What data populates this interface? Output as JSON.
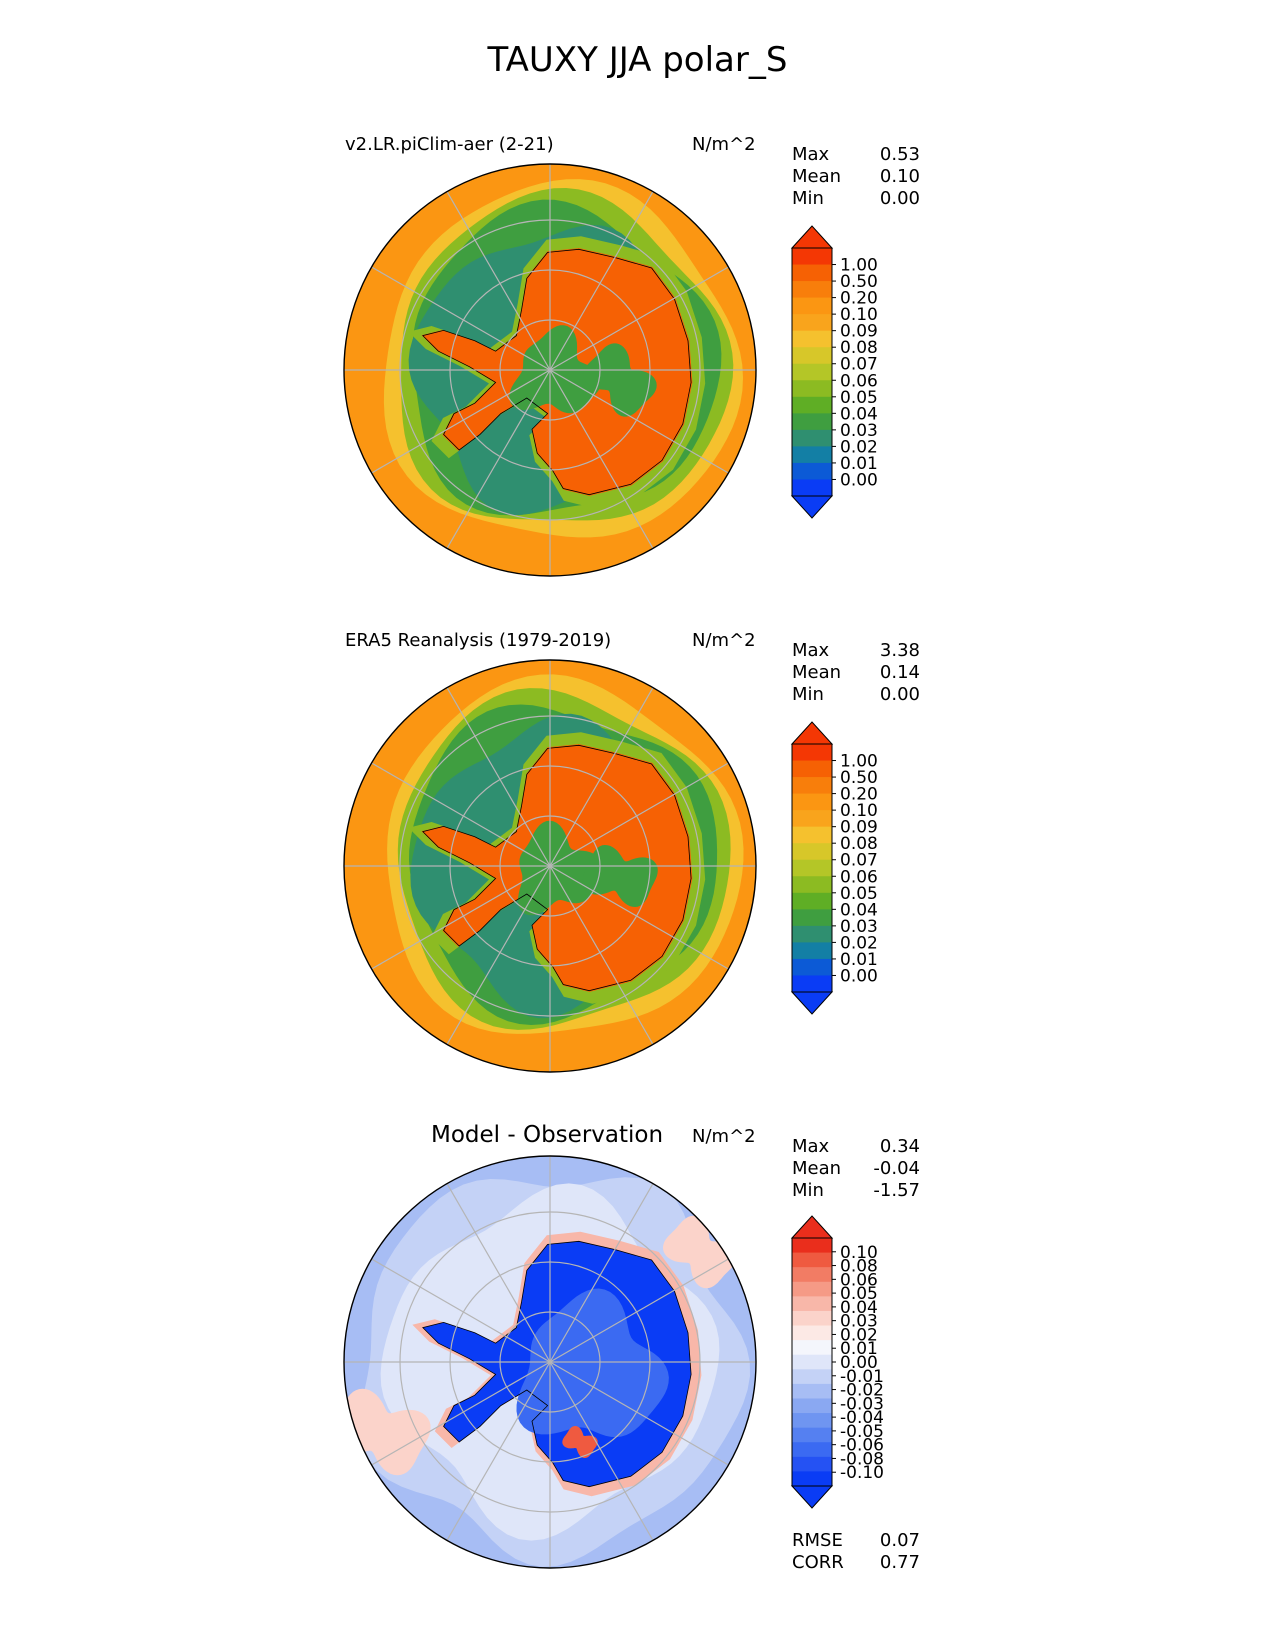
{
  "title": "TAUXY JJA polar_S",
  "colors": {
    "seq": [
      "#0a3cf5",
      "#0c5ad6",
      "#137fa5",
      "#2f8f70",
      "#3f9e40",
      "#5fae25",
      "#8cbb22",
      "#b4c627",
      "#d7c729",
      "#f5c12e",
      "#f9a41c",
      "#fb9612",
      "#f87e0b",
      "#f66104",
      "#f43704"
    ],
    "diff": [
      "#0a3cf5",
      "#2552f3",
      "#3b6af2",
      "#5580f1",
      "#6f95f1",
      "#8aa8f2",
      "#a7bdf4",
      "#c4d2f6",
      "#dfe6f9",
      "#f4f6fc",
      "#fce9e5",
      "#fbd3ca",
      "#f8b7a9",
      "#f59a86",
      "#f27c64",
      "#ef5a40",
      "#ea2e1c"
    ],
    "land": "#f66104",
    "ocean": "#fb9612",
    "ring": "#3f9e40"
  },
  "chart_data": [
    {
      "type": "heatmap",
      "projection": "south-polar-stereographic",
      "title": "v2.LR.piClim-aer (2-21)",
      "units": "N/m^2",
      "stats": [
        {
          "label": "Max",
          "value": "0.53"
        },
        {
          "label": "Mean",
          "value": "0.10"
        },
        {
          "label": "Min",
          "value": "0.00"
        }
      ],
      "colorbar": {
        "levels": [
          "1.00",
          "0.50",
          "0.20",
          "0.10",
          "0.09",
          "0.08",
          "0.07",
          "0.06",
          "0.05",
          "0.04",
          "0.03",
          "0.02",
          "0.01",
          "0.00"
        ],
        "extend": "both"
      }
    },
    {
      "type": "heatmap",
      "projection": "south-polar-stereographic",
      "title": "ERA5 Reanalysis (1979-2019)",
      "units": "N/m^2",
      "stats": [
        {
          "label": "Max",
          "value": "3.38"
        },
        {
          "label": "Mean",
          "value": "0.14"
        },
        {
          "label": "Min",
          "value": "0.00"
        }
      ],
      "colorbar": {
        "levels": [
          "1.00",
          "0.50",
          "0.20",
          "0.10",
          "0.09",
          "0.08",
          "0.07",
          "0.06",
          "0.05",
          "0.04",
          "0.03",
          "0.02",
          "0.01",
          "0.00"
        ],
        "extend": "both"
      }
    },
    {
      "type": "heatmap",
      "projection": "south-polar-stereographic",
      "title": "Model - Observation",
      "units": "N/m^2",
      "stats": [
        {
          "label": "Max",
          "value": "0.34"
        },
        {
          "label": "Mean",
          "value": "-0.04"
        },
        {
          "label": "Min",
          "value": "-1.57"
        }
      ],
      "colorbar": {
        "levels": [
          "0.10",
          "0.08",
          "0.06",
          "0.05",
          "0.04",
          "0.03",
          "0.02",
          "0.01",
          "0.00",
          "-0.01",
          "-0.02",
          "-0.03",
          "-0.04",
          "-0.05",
          "-0.06",
          "-0.08",
          "-0.10"
        ],
        "extend": "both"
      },
      "metrics": [
        {
          "label": "RMSE",
          "value": "0.07"
        },
        {
          "label": "CORR",
          "value": "0.77"
        }
      ]
    }
  ]
}
